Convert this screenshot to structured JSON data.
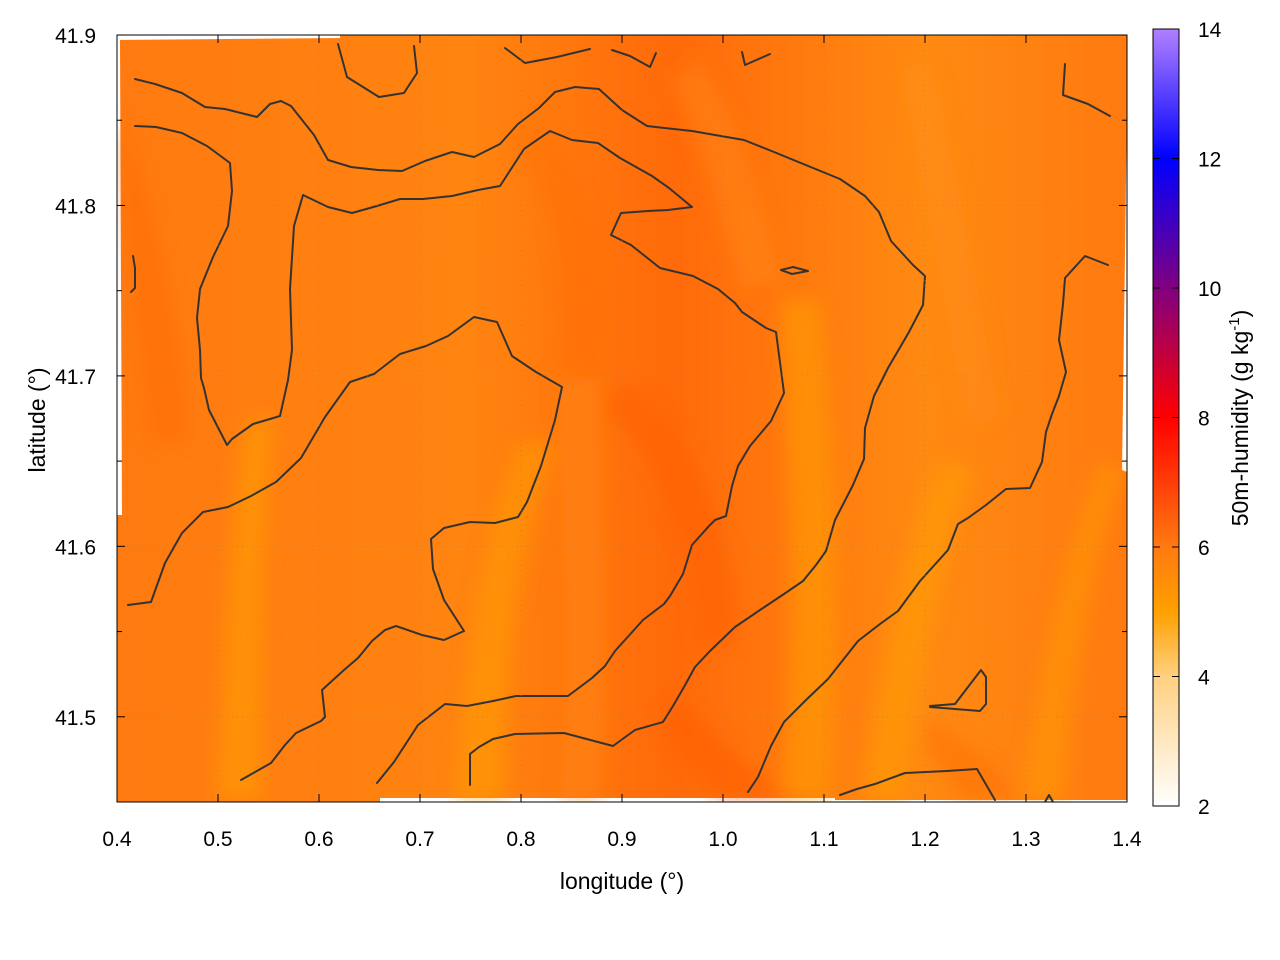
{
  "chart_data": {
    "type": "heatmap",
    "xlabel": "longitude (°)",
    "ylabel": "latitude (°)",
    "colorbar_label": "50m-humidity (g kg",
    "colorbar_label_sup": "-1",
    "colorbar_label_end": ")",
    "xlim": [
      0.4,
      1.4
    ],
    "ylim": [
      41.45,
      41.9
    ],
    "x_ticks": [
      0.4,
      0.5,
      0.6,
      0.7,
      0.8,
      0.9,
      1.0,
      1.1,
      1.2,
      1.3,
      1.4
    ],
    "x_tick_labels": [
      "0.4",
      "0.5",
      "0.6",
      "0.7",
      "0.8",
      "0.9",
      "1.0",
      "1.1",
      "1.2",
      "1.3",
      "1.4"
    ],
    "y_ticks": [
      41.5,
      41.6,
      41.7,
      41.8,
      41.9
    ],
    "y_tick_labels": [
      "41.5",
      "41.6",
      "41.7",
      "41.8",
      "41.9"
    ],
    "colorbar_range": [
      2,
      14
    ],
    "colorbar_ticks": [
      2,
      4,
      6,
      8,
      10,
      12,
      14
    ],
    "colorbar_tick_labels": [
      "2",
      "4",
      "6",
      "8",
      "10",
      "12",
      "14"
    ],
    "colormap": [
      {
        "value": 2,
        "color": "#ffffff"
      },
      {
        "value": 4,
        "color": "#ffd080"
      },
      {
        "value": 5,
        "color": "#ffa000"
      },
      {
        "value": 6,
        "color": "#ff7a10"
      },
      {
        "value": 8,
        "color": "#ff0000"
      },
      {
        "value": 10,
        "color": "#800080"
      },
      {
        "value": 12,
        "color": "#0000ff"
      },
      {
        "value": 14,
        "color": "#b080ff"
      }
    ],
    "grid": true,
    "contour_color": "#333333",
    "field_estimate": {
      "range": [
        5.2,
        6.8
      ],
      "dominant_color": "#ff7a10",
      "min_color": "#ffa000",
      "max_color": "#ff5a08"
    }
  }
}
